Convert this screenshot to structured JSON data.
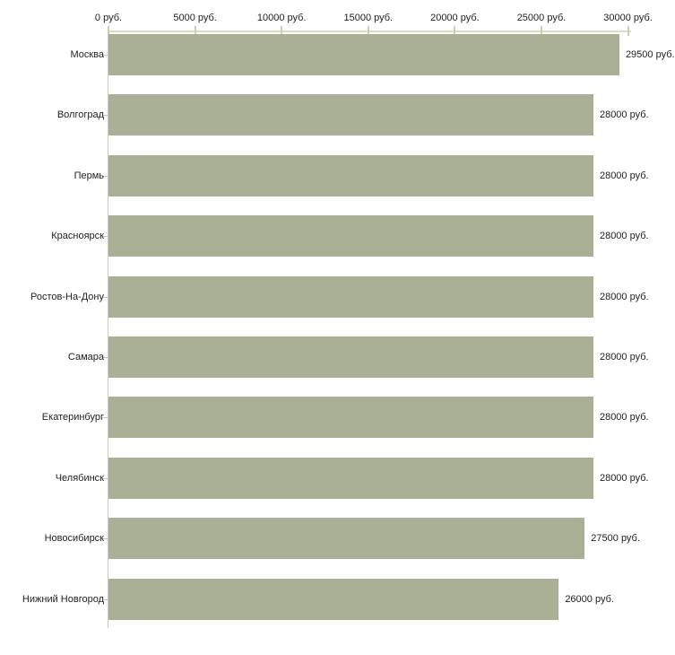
{
  "chart_data": {
    "type": "bar",
    "orientation": "horizontal",
    "title": "",
    "xlabel": "",
    "ylabel": "",
    "unit": "руб.",
    "categories": [
      "Москва",
      "Волгоград",
      "Пермь",
      "Красноярск",
      "Ростов-На-Дону",
      "Самара",
      "Екатеринбург",
      "Челябинск",
      "Новосибирск",
      "Нижний Новгород"
    ],
    "values": [
      29500,
      28000,
      28000,
      28000,
      28000,
      28000,
      28000,
      28000,
      27500,
      26000
    ],
    "value_labels": [
      "29500 руб.",
      "28000 руб.",
      "28000 руб.",
      "28000 руб.",
      "28000 руб.",
      "28000 руб.",
      "28000 руб.",
      "28000 руб.",
      "27500 руб.",
      "26000 руб."
    ],
    "x_ticks": [
      0,
      5000,
      10000,
      15000,
      20000,
      25000,
      30000
    ],
    "x_tick_labels": [
      "0 руб.",
      "5000 руб.",
      "10000 руб.",
      "15000 руб.",
      "20000 руб.",
      "25000 руб.",
      "30000 руб."
    ],
    "xlim": [
      0,
      30000
    ],
    "grid": false,
    "legend": false,
    "axis_position": "top",
    "colors": {
      "bar": "#aab095",
      "axis_line": "#d9dcc3",
      "axis_tick": "#c9cfa6",
      "category_axis_line": "#c9c9c9",
      "category_tick": "#c4c6bc",
      "text": "#1f1f1f",
      "background": "#ffffff"
    }
  }
}
